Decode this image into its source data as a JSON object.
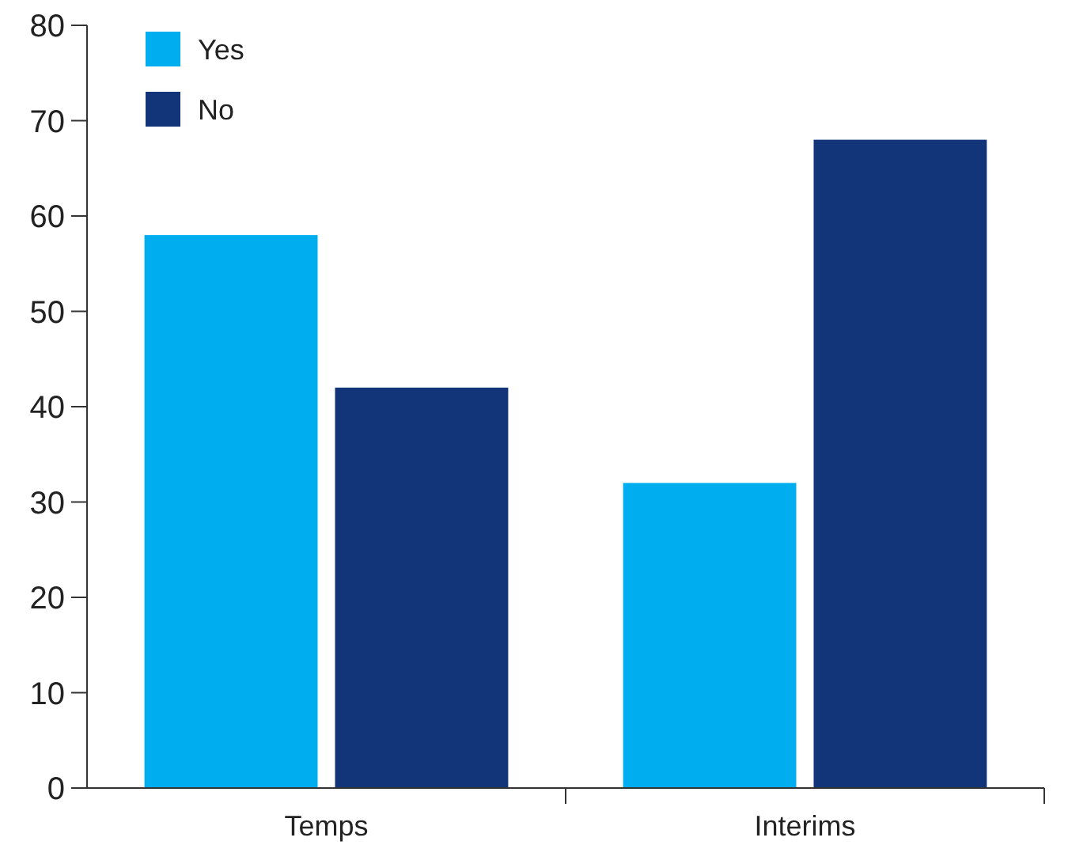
{
  "chart_data": {
    "type": "bar",
    "categories": [
      "Temps",
      "Interims"
    ],
    "series": [
      {
        "name": "Yes",
        "color": "#00aeef",
        "values": [
          58,
          32
        ]
      },
      {
        "name": "No",
        "color": "#12357a",
        "values": [
          42,
          68
        ]
      }
    ],
    "ylim": [
      0,
      80
    ],
    "yticks": [
      0,
      10,
      20,
      30,
      40,
      50,
      60,
      70,
      80
    ],
    "grid": false,
    "legend": "top left"
  }
}
